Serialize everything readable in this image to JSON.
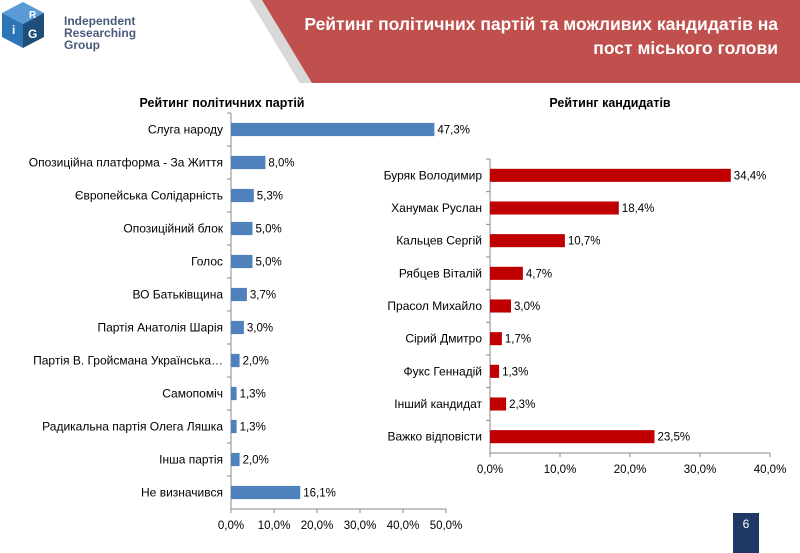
{
  "header": {
    "logo_line1": "Independent",
    "logo_line2": "Researching",
    "logo_line3": "Group",
    "logo_letters": [
      "i",
      "R",
      "G"
    ],
    "title_line1": "Рейтинг політичних партій та можливих кандидатів на",
    "title_line2": "пост міського голови",
    "band_color": "#c0504d"
  },
  "page_number": "6",
  "chart_data": [
    {
      "type": "bar",
      "orientation": "horizontal",
      "title": "Рейтинг політичних партій",
      "categories": [
        "Слуга народу",
        "Опозиційна платформа - За Життя",
        "Європейська Солідарність",
        "Опозиційний блок",
        "Голос",
        "ВО Батьківщина",
        "Партія Анатолія Шарія",
        "Партія В. Гройсмана Українська…",
        "Самопоміч",
        "Радикальна партія Олега Ляшка",
        "Інша партія",
        "Не визначився"
      ],
      "values": [
        47.3,
        8.0,
        5.3,
        5.0,
        5.0,
        3.7,
        3.0,
        2.0,
        1.3,
        1.3,
        2.0,
        16.1
      ],
      "data_labels": [
        "47,3%",
        "8,0%",
        "5,3%",
        "5,0%",
        "5,0%",
        "3,7%",
        "3,0%",
        "2,0%",
        "1,3%",
        "1,3%",
        "2,0%",
        "16,1%"
      ],
      "xlim": [
        0,
        50
      ],
      "ticks": [
        "0,0%",
        "10,0%",
        "20,0%",
        "30,0%",
        "40,0%",
        "50,0%"
      ],
      "color": "#4f81bd",
      "grid": false
    },
    {
      "type": "bar",
      "orientation": "horizontal",
      "title": "Рейтинг кандидатів",
      "categories": [
        "Буряк Володимир",
        "Ханумак Руслан",
        "Кальцев Сергій",
        "Рябцев Віталій",
        "Прасол Михайло",
        "Сірий Дмитро",
        "Фукс Геннадій",
        "Інший кандидат",
        "Важко відповісти"
      ],
      "values": [
        34.4,
        18.4,
        10.7,
        4.7,
        3.0,
        1.7,
        1.3,
        2.3,
        23.5
      ],
      "data_labels": [
        "34,4%",
        "18,4%",
        "10,7%",
        "4,7%",
        "3,0%",
        "1,7%",
        "1,3%",
        "2,3%",
        "23,5%"
      ],
      "xlim": [
        0,
        40
      ],
      "ticks": [
        "0,0%",
        "10,0%",
        "20,0%",
        "30,0%",
        "40,0%"
      ],
      "color": "#c00000",
      "grid": false
    }
  ]
}
